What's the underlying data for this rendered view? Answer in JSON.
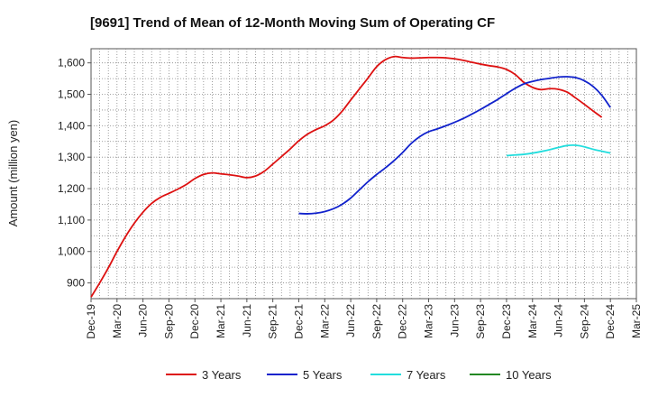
{
  "chart_data": {
    "type": "line",
    "title": "[9691]  Trend of Mean of 12-Month Moving Sum of Operating CF",
    "ylabel": "Amount (million yen)",
    "xlabel": "",
    "ylim": [
      850,
      1645
    ],
    "yticks": [
      900,
      1000,
      1100,
      1200,
      1300,
      1400,
      1500,
      1600
    ],
    "ytick_labels": [
      "900",
      "1,000",
      "1,100",
      "1,200",
      "1,300",
      "1,400",
      "1,500",
      "1,600"
    ],
    "xticks": [
      "Dec-19",
      "Mar-20",
      "Jun-20",
      "Sep-20",
      "Dec-20",
      "Mar-21",
      "Jun-21",
      "Sep-21",
      "Dec-21",
      "Mar-22",
      "Jun-22",
      "Sep-22",
      "Dec-22",
      "Mar-23",
      "Jun-23",
      "Sep-23",
      "Dec-23",
      "Mar-24",
      "Jun-24",
      "Sep-24",
      "Dec-24",
      "Mar-25"
    ],
    "grid": true,
    "legend_position": "bottom",
    "series": [
      {
        "name": "3 Years",
        "color": "#dd1111",
        "start_index": 0,
        "values": [
          855,
          900,
          948,
          1000,
          1048,
          1090,
          1125,
          1153,
          1172,
          1185,
          1198,
          1213,
          1232,
          1245,
          1250,
          1247,
          1244,
          1240,
          1235,
          1240,
          1255,
          1278,
          1302,
          1326,
          1352,
          1373,
          1388,
          1400,
          1418,
          1446,
          1482,
          1517,
          1552,
          1588,
          1610,
          1620,
          1617,
          1615,
          1616,
          1617,
          1617,
          1616,
          1613,
          1608,
          1602,
          1596,
          1591,
          1587,
          1579,
          1563,
          1538,
          1522,
          1515,
          1518,
          1516,
          1507,
          1488,
          1468,
          1447,
          1427
        ]
      },
      {
        "name": "5 Years",
        "color": "#1122cc",
        "start_index": 24,
        "values": [
          1121,
          1120,
          1122,
          1127,
          1136,
          1150,
          1170,
          1196,
          1222,
          1245,
          1266,
          1289,
          1315,
          1344,
          1366,
          1381,
          1390,
          1400,
          1411,
          1423,
          1437,
          1452,
          1468,
          1484,
          1502,
          1519,
          1533,
          1541,
          1547,
          1551,
          1555,
          1556,
          1553,
          1543,
          1525,
          1497,
          1458
        ]
      },
      {
        "name": "7 Years",
        "color": "#22dddd",
        "start_index": 48,
        "values": [
          1305,
          1307,
          1309,
          1313,
          1318,
          1324,
          1331,
          1337,
          1338,
          1333,
          1325,
          1319,
          1313
        ]
      },
      {
        "name": "10 Years",
        "color": "#228822",
        "start_index": 0,
        "values": []
      }
    ]
  }
}
